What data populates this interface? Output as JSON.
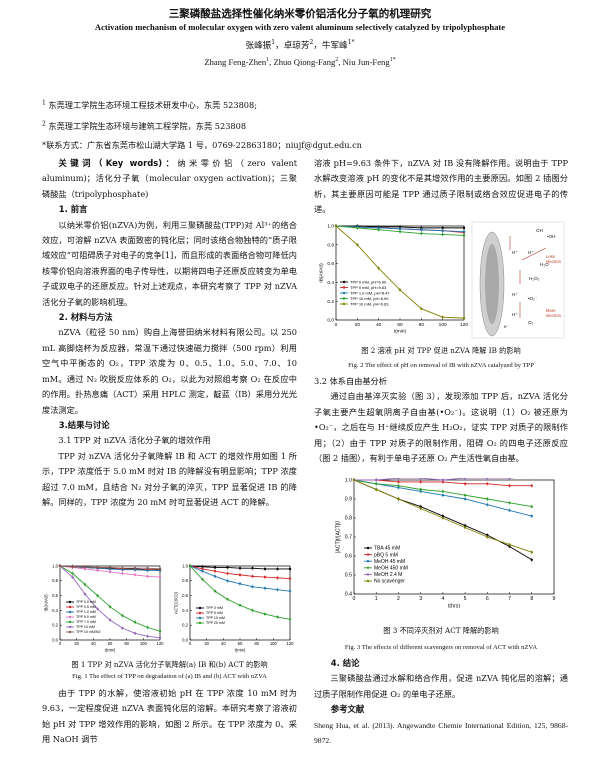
{
  "title_cn": "三聚磷酸盐选择性催化纳米零价铝活化分子氧的机理研究",
  "title_en": "Activation mechanism of molecular oxygen with zero valent aluminum selectively catalyzed by tripolyphosphate",
  "authors_cn": "张峰振",
  "authors_cn_sup1": "1",
  "authors_cn_sep1": "，卓琼芳",
  "authors_cn_sup2": "2",
  "authors_cn_sep2": "，牛军峰",
  "authors_cn_sup3": "1*",
  "authors_en": "Zhang Feng-Zhen",
  "authors_en_sup1": "1",
  "authors_en_sep1": ", Zhuo Qiong-Fang",
  "authors_en_sup2": "2",
  "authors_en_sep2": ", Niu Jun-Feng",
  "authors_en_sup3": "1*",
  "affiliations": {
    "a1_sup": "1",
    "a1": " 东莞理工学院生态环境工程技术研发中心，东莞  523808;",
    "a2_sup": "2",
    "a2": " 东莞理工学院生态环境与建筑工程学院，东莞  523808",
    "a3": "*联系方式：广东省东莞市松山湖大学路 1 号，0769-22863180；niujf@dgut.edu.cn"
  },
  "left_col": {
    "keywords_label": "关键词（Key words)：",
    "keywords_text": "纳米零价铝（zero valent aluminum)；活化分子氧（molecular oxygen activation)；三聚磷酸盐（tripolyphosphate)",
    "sec1": "1. 前言",
    "p1": "以纳米零价铝(nZVA)为例，利用三聚磷酸盐(TPP)对 Al³⁺的络合效应，可溶解 nZVA 表面致密的钝化层；同时该络合物独特的“质子限域效应”可阻碍质子对电子的竞争[1]，而且形成的表面络合物可降低内核零价铝向溶液界面的电子传导性，以期将四电子还原反应转变为单电子或双电子的还原反应。针对上述观点，本研究考察了 TPP 对 nZVA 活化分子氧的影响机理。",
    "sec2": "2. 材料与方法",
    "p2": "nZVA（粒径 50 nm）购自上海誉田纳米材料有限公司。以 250 mL 高脚烧杯为反应器，常温下通过快速磁力搅拌（500 rpm）利用空气中平衡态的 O₂，TPP 浓度为 0、0.5、1.0、5.0、7.0、10 mM。通过 N₂ 吹脱反应体系的 O₂，以此为对照组考察 O₂ 在反应中的作用。扑热息痛（ACT）采用 HPLC 测定，靛蓝（IB）采用分光光度法测定。",
    "sec3": "3.结果与讨论",
    "sub31": "3.1 TPP 对 nZVA 活化分子氧的增效作用",
    "p3": "TPP 对 nZVA 活化分子氧降解 IB 和 ACT 的增效作用如图 1 所示，TPP 浓度低于 5.0 mM 时对 IB 的降解没有明显影响；TPP 浓度超过 7.0 mM，且结合 N₂ 对分子氧的淬灭，TPP 显著促进 IB 的降解。同样的，TPP 浓度为 20 mM 时可显著促进 ACT 的降解。",
    "fig1_cap_cn": "图 1 TPP 对 nZVA 活化分子氧降解(a) IB 和(b) ACT 的影响",
    "fig1_cap_en": "Fig. 1 The effect of TPP on degradation of (a) IB and (b) ACT with nZVA",
    "p4": "由于 TPP 的水解，使溶液初始 pH 在 TPP 浓度 10 mM 时为 9.63，一定程度促进 nZVA 表面钝化层的溶解。本研究考察了溶液初始 pH 对 TPP 增效作用的影响，如图 2 所示。在 TPP 浓度为 0、采用 NaOH 调节"
  },
  "right_col": {
    "p5": "溶液 pH=9.63 条件下，nZVA 对 IB 没有降解作用。说明由于 TPP 水解改变溶液 pH 的变化不是其增效作用的主要原因。如图 2 插图分析，其主要原因可能是 TPP 通过质子限制或络合效应促进电子的传递。",
    "fig2_cap_cn": "图 2 溶液 pH 对 TPP 促进 nZVA 降解 IB 的影响",
    "fig2_cap_en": "Fig. 2 The effect of pH on removal of IB with nZVA catalyzed by TPP",
    "sub32": "3.2 体系自由基分析",
    "p6": "通过自由基淬灭实验（图 3），发现添加 TPP 后，nZVA 活化分子氧主要产生超氧阴离子自由基(•O₂⁻)。这说明（1）O₂ 被还原为•O₂⁻，之后在与 H⁺继续反应产生 H₂O₂，证实 TPP 对质子的限制作用；（2）由于 TPP 对质子的限制作用，阻碍 O₂ 的四电子还原反应（图 2 插图），有利于单电子还原 O₂ 产生活性氧自由基。",
    "fig3_cap_cn": "图 3 不同淬灭剂对 ACT 降解的影响",
    "fig3_cap_en": "Fig. 3 The effects of different scavengers on removal of ACT with nZVA",
    "sec4": "4. 结论",
    "p7": "三聚磷酸盐通过水解和络合作用，促进 nZVA 钝化层的溶解；通过质子限制作用促进 O₂ 的单电子还原。",
    "ref_head": "参考文献",
    "ref1": "Sheng Hua, et al. (2013). Angewandte Chemie International Edition, 125, 9868-9872."
  },
  "chart_data": [
    {
      "type": "line",
      "panel": "fig1a",
      "xlabel": "t(min)",
      "ylabel": "IB(At/A0)",
      "xlim": [
        0,
        120
      ],
      "ylim": [
        0.0,
        1.0
      ],
      "x": [
        0,
        15,
        30,
        45,
        60,
        75,
        90,
        105,
        120
      ],
      "series": [
        {
          "name": "TPP 0.0 mM",
          "color": "#000000",
          "values": [
            1.0,
            0.99,
            0.98,
            0.97,
            0.97,
            0.96,
            0.96,
            0.95,
            0.95
          ]
        },
        {
          "name": "TPP 0.5 mM",
          "color": "#d62728",
          "values": [
            1.0,
            0.99,
            0.98,
            0.97,
            0.96,
            0.96,
            0.95,
            0.95,
            0.94
          ]
        },
        {
          "name": "TPP 1.0 mM",
          "color": "#1f77b4",
          "values": [
            1.0,
            0.99,
            0.98,
            0.97,
            0.96,
            0.95,
            0.95,
            0.94,
            0.94
          ]
        },
        {
          "name": "TPP 5.0 mM",
          "color": "#e377c2",
          "values": [
            1.0,
            0.98,
            0.96,
            0.94,
            0.92,
            0.9,
            0.88,
            0.86,
            0.85
          ]
        },
        {
          "name": "TPP 7.0 mM",
          "color": "#2ca02c",
          "values": [
            1.0,
            0.9,
            0.75,
            0.6,
            0.45,
            0.33,
            0.24,
            0.17,
            0.12
          ]
        },
        {
          "name": "TPP 10 mM",
          "color": "#9467bd",
          "values": [
            1.0,
            0.85,
            0.62,
            0.42,
            0.27,
            0.16,
            0.09,
            0.05,
            0.03
          ]
        },
        {
          "name": "TPP 10 mM/N2",
          "color": "#8c564b",
          "values": [
            1.0,
            0.99,
            0.99,
            0.98,
            0.98,
            0.97,
            0.97,
            0.97,
            0.96
          ]
        }
      ]
    },
    {
      "type": "line",
      "panel": "fig1b",
      "xlabel": "t(min)",
      "ylabel": "ACT(Ct/C0)",
      "xlim": [
        0,
        120
      ],
      "ylim": [
        0.0,
        1.0
      ],
      "x": [
        0,
        15,
        30,
        45,
        60,
        75,
        90,
        105,
        120
      ],
      "series": [
        {
          "name": "TPP 0 mM",
          "color": "#000000",
          "values": [
            1.0,
            0.99,
            0.98,
            0.98,
            0.97,
            0.97,
            0.96,
            0.96,
            0.96
          ]
        },
        {
          "name": "TPP 5 mM",
          "color": "#d62728",
          "values": [
            1.0,
            0.96,
            0.93,
            0.9,
            0.88,
            0.86,
            0.85,
            0.84,
            0.83
          ]
        },
        {
          "name": "TPP 10 mM",
          "color": "#1f77b4",
          "values": [
            1.0,
            0.93,
            0.86,
            0.8,
            0.76,
            0.72,
            0.7,
            0.68,
            0.66
          ]
        },
        {
          "name": "TPP 20 mM",
          "color": "#2ca02c",
          "values": [
            1.0,
            0.82,
            0.66,
            0.55,
            0.47,
            0.4,
            0.35,
            0.31,
            0.28
          ]
        }
      ]
    },
    {
      "type": "line",
      "panel": "fig2",
      "xlabel": "t(min)",
      "ylabel": "IB(At/A0)",
      "xlim": [
        0,
        120
      ],
      "ylim": [
        0.0,
        1.0
      ],
      "x": [
        0,
        20,
        40,
        60,
        80,
        100,
        120
      ],
      "series": [
        {
          "name": "TPP 0 mM, pH=6.90",
          "color": "#000000",
          "values": [
            1.0,
            1.0,
            0.99,
            0.99,
            0.98,
            0.98,
            0.98
          ]
        },
        {
          "name": "TPP 0 mM, pH=9.63",
          "color": "#d62728",
          "values": [
            1.0,
            0.99,
            0.98,
            0.97,
            0.96,
            0.95,
            0.93
          ]
        },
        {
          "name": "TPP 1.0 mM, pH=8.47",
          "color": "#1f77b4",
          "values": [
            1.0,
            0.99,
            0.98,
            0.97,
            0.96,
            0.95,
            0.94
          ]
        },
        {
          "name": "TPP 10 mM, pH=6.90",
          "color": "#2ca02c",
          "values": [
            1.0,
            0.98,
            0.96,
            0.94,
            0.92,
            0.91,
            0.9
          ]
        },
        {
          "name": "TPP 10 mM, pH=9.63",
          "color": "#808000",
          "values": [
            1.0,
            0.8,
            0.55,
            0.32,
            0.12,
            0.03,
            0.02
          ]
        }
      ]
    },
    {
      "type": "line",
      "panel": "fig3",
      "xlabel": "t(hrs)",
      "ylabel": "[ACT]t/[ACT]0",
      "xlim": [
        0,
        9
      ],
      "ylim": [
        0.4,
        1.0
      ],
      "x": [
        0,
        1,
        2,
        3,
        4,
        5,
        6,
        7,
        8
      ],
      "series": [
        {
          "name": "TBA 45 mM",
          "color": "#000000",
          "values": [
            1.0,
            0.95,
            0.9,
            0.86,
            0.81,
            0.76,
            0.71,
            0.65,
            0.58
          ]
        },
        {
          "name": "pBQ 5 mM",
          "color": "#d62728",
          "values": [
            1.0,
            1.0,
            0.99,
            0.99,
            0.99,
            0.98,
            0.98,
            0.97,
            0.97
          ]
        },
        {
          "name": "MeOH 45 mM",
          "color": "#1f77b4",
          "values": [
            1.0,
            0.98,
            0.96,
            0.94,
            0.92,
            0.9,
            0.87,
            0.84,
            0.81
          ]
        },
        {
          "name": "MeOH 450 mM",
          "color": "#2ca02c",
          "values": [
            1.0,
            0.98,
            0.97,
            0.95,
            0.94,
            0.92,
            0.9,
            0.88,
            0.86
          ]
        },
        {
          "name": "MeOH 2.4 M",
          "color": "#9467bd",
          "values": [
            1.0,
            1.0,
            1.01,
            1.01,
            1.0,
            1.01,
            1.01,
            1.01,
            1.02
          ]
        },
        {
          "name": "No scavenger",
          "color": "#808000",
          "values": [
            1.0,
            0.95,
            0.9,
            0.85,
            0.8,
            0.75,
            0.7,
            0.66,
            0.62
          ]
        }
      ]
    }
  ],
  "fig2_inset": {
    "labels": [
      "OH",
      "•OH",
      "H⁺",
      "H⁺",
      "H₂O",
      "H₂O₂",
      "H⁺",
      "•O₂⁻",
      "H⁺",
      "O₂",
      "e⁻"
    ],
    "note1": "Less",
    "note1b": "electron",
    "note2": "More",
    "note2b": "electron"
  }
}
